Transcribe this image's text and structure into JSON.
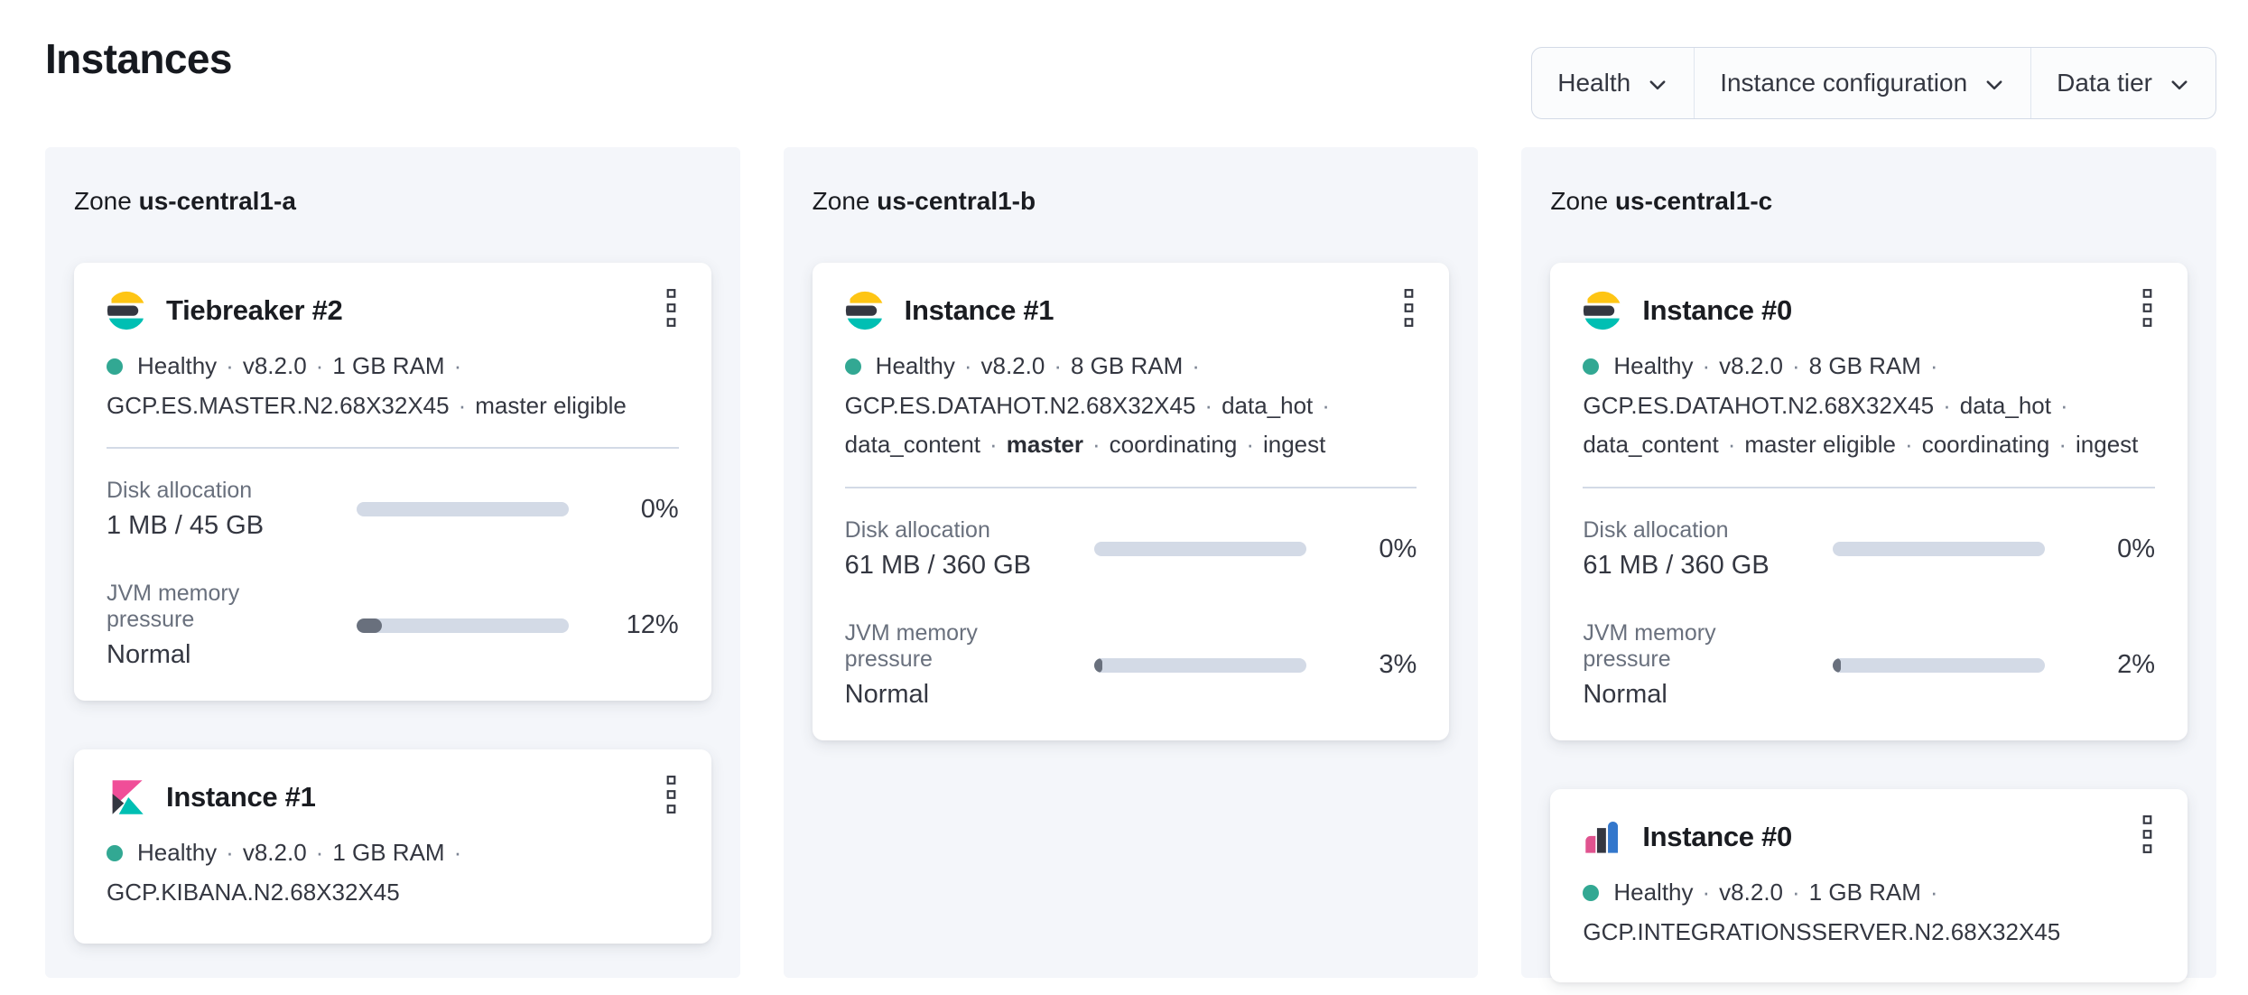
{
  "page": {
    "title": "Instances"
  },
  "filters": [
    {
      "label": "Health"
    },
    {
      "label": "Instance configuration"
    },
    {
      "label": "Data tier"
    }
  ],
  "colors": {
    "health_dot": "#32a893",
    "progress_track": "#d3dae6",
    "progress_fill": "#69707d",
    "es_yellow": "#fec514",
    "es_dark": "#343741",
    "es_teal": "#00bfb3",
    "kibana_pink": "#f04e98",
    "integrations_pink": "#e0538f",
    "integrations_blue": "#3377cc",
    "zone_bg": "#f4f6fa"
  },
  "zones": [
    {
      "label_prefix": "Zone",
      "name": "us-central1-a",
      "cards": [
        {
          "logo": "elasticsearch",
          "title": "Tiebreaker #2",
          "status_lines": [
            {
              "parts": [
                "Healthy",
                "v8.2.0",
                "1 GB RAM"
              ],
              "trailing_sep": true
            },
            {
              "parts": [
                "GCP.ES.MASTER.N2.68X32X45",
                "master eligible"
              ],
              "trailing_sep": false
            }
          ],
          "metrics": [
            {
              "label": "Disk allocation",
              "value": "1 MB / 45 GB",
              "percent_label": "0%",
              "percent_value": 0
            },
            {
              "label": "JVM memory pressure",
              "value": "Normal",
              "percent_label": "12%",
              "percent_value": 12
            }
          ]
        },
        {
          "logo": "kibana",
          "title": "Instance #1",
          "status_lines": [
            {
              "parts": [
                "Healthy",
                "v8.2.0",
                "1 GB RAM"
              ],
              "trailing_sep": true
            },
            {
              "parts": [
                "GCP.KIBANA.N2.68X32X45"
              ],
              "trailing_sep": false
            }
          ],
          "metrics": []
        }
      ]
    },
    {
      "label_prefix": "Zone",
      "name": "us-central1-b",
      "cards": [
        {
          "logo": "elasticsearch",
          "title": "Instance #1",
          "status_lines": [
            {
              "parts": [
                "Healthy",
                "v8.2.0",
                "8 GB RAM"
              ],
              "trailing_sep": true
            },
            {
              "parts": [
                "GCP.ES.DATAHOT.N2.68X32X45",
                "data_hot"
              ],
              "trailing_sep": true
            },
            {
              "parts": [
                "data_content",
                "**master**",
                "coordinating",
                "ingest"
              ],
              "trailing_sep": false
            }
          ],
          "metrics": [
            {
              "label": "Disk allocation",
              "value": "61 MB / 360 GB",
              "percent_label": "0%",
              "percent_value": 0
            },
            {
              "label": "JVM memory pressure",
              "value": "Normal",
              "percent_label": "3%",
              "percent_value": 3
            }
          ]
        }
      ]
    },
    {
      "label_prefix": "Zone",
      "name": "us-central1-c",
      "cards": [
        {
          "logo": "elasticsearch",
          "title": "Instance #0",
          "status_lines": [
            {
              "parts": [
                "Healthy",
                "v8.2.0",
                "8 GB RAM"
              ],
              "trailing_sep": true
            },
            {
              "parts": [
                "GCP.ES.DATAHOT.N2.68X32X45",
                "data_hot"
              ],
              "trailing_sep": true
            },
            {
              "parts": [
                "data_content",
                "master eligible",
                "coordinating",
                "ingest"
              ],
              "trailing_sep": false
            }
          ],
          "metrics": [
            {
              "label": "Disk allocation",
              "value": "61 MB / 360 GB",
              "percent_label": "0%",
              "percent_value": 0
            },
            {
              "label": "JVM memory pressure",
              "value": "Normal",
              "percent_label": "2%",
              "percent_value": 2
            }
          ]
        },
        {
          "logo": "integrations_server",
          "title": "Instance #0",
          "status_lines": [
            {
              "parts": [
                "Healthy",
                "v8.2.0",
                "1 GB RAM"
              ],
              "trailing_sep": true
            },
            {
              "parts": [
                "GCP.INTEGRATIONSSERVER.N2.68X32X45"
              ],
              "trailing_sep": false
            }
          ],
          "metrics": []
        }
      ]
    }
  ]
}
